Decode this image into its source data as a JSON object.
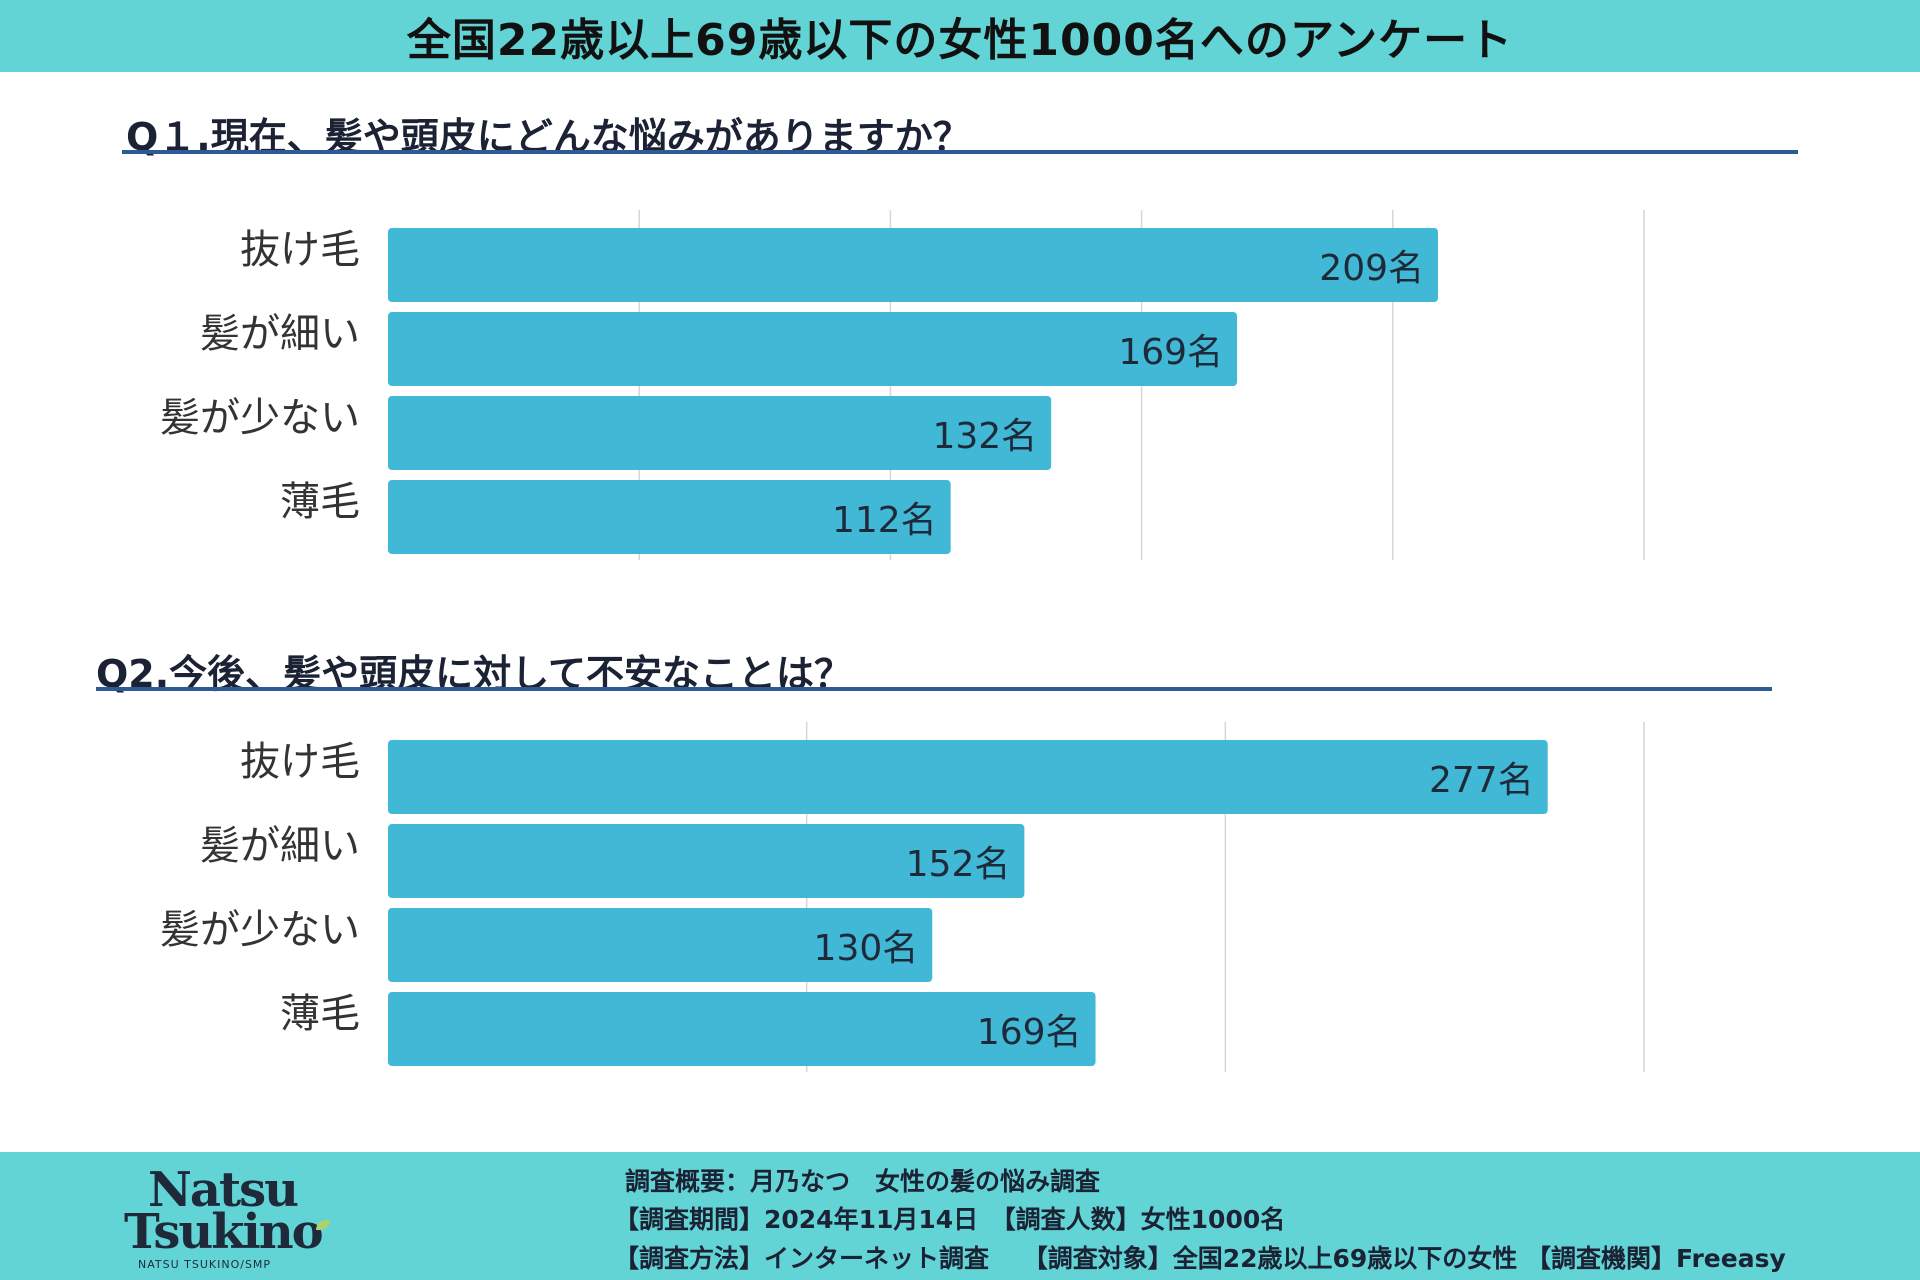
{
  "header": {
    "title": "全国22歳以上69歳以下の女性1000名へのアンケート"
  },
  "q1": {
    "title": "Q１.現在、髪や頭皮にどんな悩みがありますか？"
  },
  "q2": {
    "title": "Q2.今後、髪や頭皮に対して不安なことは？"
  },
  "chart_data": [
    {
      "type": "bar",
      "orientation": "horizontal",
      "title": "Q１.現在、髪や頭皮にどんな悩みがありますか？",
      "categories": [
        "抜け毛",
        "髪が細い",
        "髪が少ない",
        "薄毛"
      ],
      "values": [
        209,
        169,
        132,
        112
      ],
      "value_suffix": "名",
      "xlim": [
        0,
        250
      ],
      "grid_step": 50,
      "color": "#40b8d6"
    },
    {
      "type": "bar",
      "orientation": "horizontal",
      "title": "Q2.今後、髪や頭皮に対して不安なことは？",
      "categories": [
        "抜け毛",
        "髪が細い",
        "髪が少ない",
        "薄毛"
      ],
      "values": [
        277,
        152,
        130,
        169
      ],
      "value_suffix": "名",
      "xlim": [
        0,
        300
      ],
      "grid_step": 100,
      "color": "#40b8d6"
    }
  ],
  "footer": {
    "logo_line1": "Natsu",
    "logo_line2": "Tsukino",
    "logo_sub": "NATSU TSUKINO/SMP",
    "line1": "調査概要：月乃なつ　女性の髪の悩み調査",
    "line2": "【調査期間】2024年11月14日　【調査人数】女性1000名",
    "line3": "【調査方法】インターネット調査　 【調査対象】全国22歳以上69歳以下の女性 【調査機関】Freeasy"
  }
}
